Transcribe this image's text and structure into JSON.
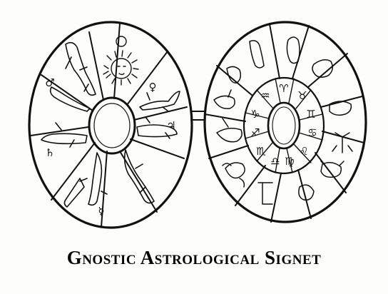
{
  "caption": {
    "text": "Gnostic Astrological Signet"
  },
  "left_signet": {
    "center": "blank-oval",
    "sectors": 10,
    "icons": [
      "sun-face-icon",
      "mars-symbol-icon",
      "venus-symbol-icon",
      "jupiter-symbol-icon",
      "saturn-symbol-icon",
      "mercury-symbol-icon",
      "planetary-figure-icon"
    ]
  },
  "right_signet": {
    "center": "blank-oval",
    "outer_sectors": 12,
    "inner_ring_sectors": 12,
    "icons": [
      "zodiac-figure-icon",
      "scorpion-icon",
      "crab-icon",
      "goat-icon",
      "ram-icon",
      "twins-icon",
      "archer-icon",
      "fish-icon",
      "bull-icon",
      "lion-icon",
      "scales-icon",
      "virgin-icon",
      "water-bearer-icon"
    ]
  },
  "colors": {
    "ink": "#111111",
    "paper": "#fdfdfb"
  }
}
